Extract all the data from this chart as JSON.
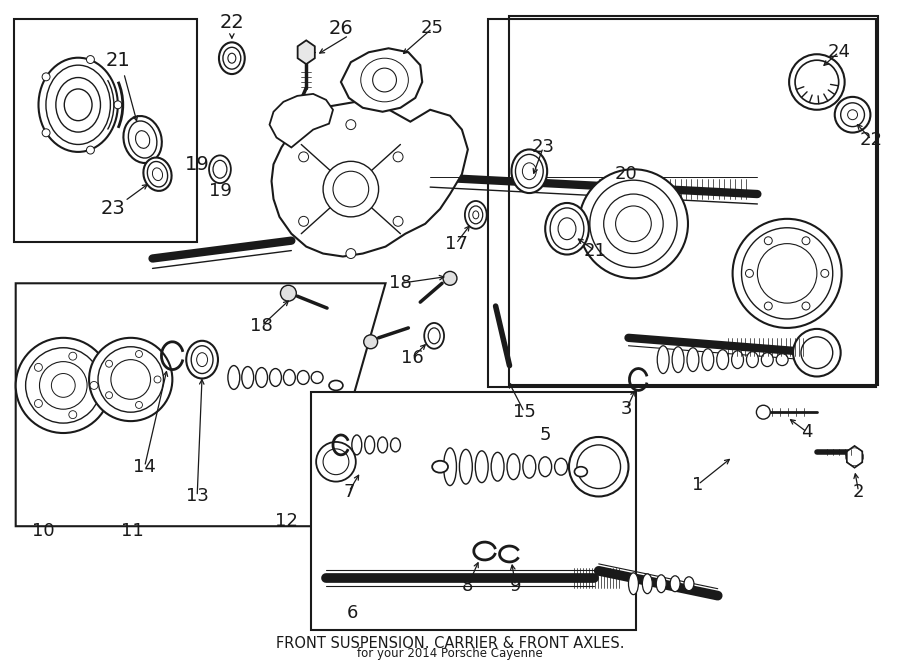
{
  "title": "FRONT SUSPENSION. CARRIER & FRONT AXLES.",
  "subtitle": "for your 2014 Porsche Cayenne",
  "bg_color": "#ffffff",
  "line_color": "#1a1a1a",
  "fig_width": 9.0,
  "fig_height": 6.61,
  "dpi": 100,
  "font_size_labels": 13,
  "font_size_title": 10.5
}
